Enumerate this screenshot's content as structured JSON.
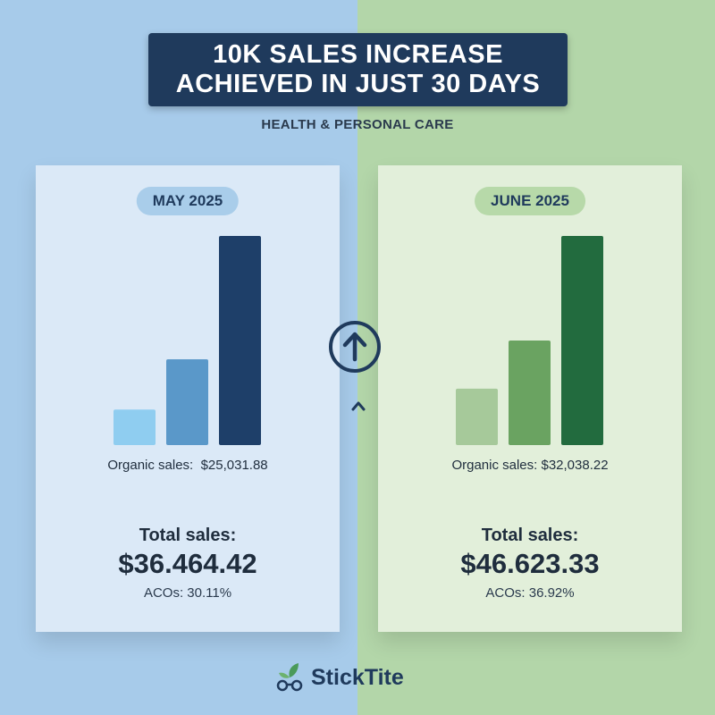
{
  "title": {
    "line1": "10K SALES INCREASE",
    "line2": "ACHIEVED IN JUST 30 DAYS"
  },
  "subtitle": "HEALTH & PERSONAL CARE",
  "brand": {
    "name": "StickTite",
    "icon": "glasses-leaf-icon"
  },
  "center_icons": [
    "up-arrow-circle-icon",
    "chevron-up-icon"
  ],
  "colors": {
    "left_background": "#a7cbea",
    "right_background": "#b3d6a9",
    "title_background": "#1f3a5c"
  },
  "panels": [
    {
      "period": "MAY 2025",
      "organic_label": "Organic sales:",
      "organic_value": "$25,031.88",
      "total_label": "Total sales:",
      "total_value": "$36.464.42",
      "acos": "ACOs: 30.11%"
    },
    {
      "period": "JUNE 2025",
      "organic_label": "Organic sales:",
      "organic_value": "$32,038.22",
      "total_label": "Total sales:",
      "total_value": "$46.623.33",
      "acos": "ACOs: 36.92%"
    }
  ],
  "chart_data": [
    {
      "type": "bar",
      "title": "MAY 2025",
      "categories": [
        "",
        "",
        ""
      ],
      "values": [
        0.17,
        0.41,
        1.0
      ],
      "colors": [
        "#8fcdf0",
        "#5a98c9",
        "#1e3f69"
      ],
      "grid": false
    },
    {
      "type": "bar",
      "title": "JUNE 2025",
      "categories": [
        "",
        "",
        ""
      ],
      "values": [
        0.27,
        0.5,
        1.0
      ],
      "colors": [
        "#a6c99a",
        "#6aa361",
        "#226b3e"
      ],
      "grid": false
    }
  ]
}
